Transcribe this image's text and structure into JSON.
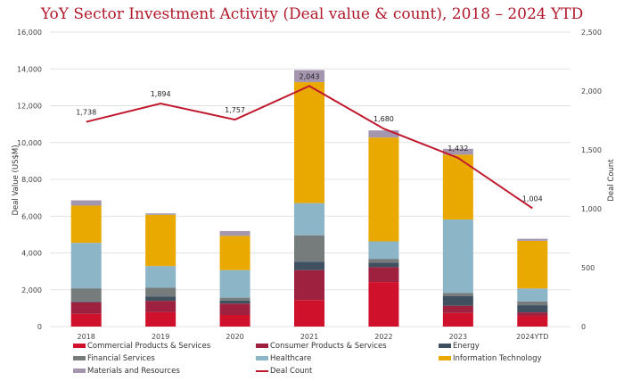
{
  "chart_data": {
    "type": "bar",
    "subtype": "stacked-bar-with-line",
    "title": "YoY Sector Investment Activity (Deal value & count), 2018 – 2024 YTD",
    "xlabel": "",
    "ylabel": "Deal Value (US$M)",
    "y2label": "Deal Count",
    "ylim": [
      0,
      16000
    ],
    "y2lim": [
      0,
      2500
    ],
    "yticks": [
      "0",
      "2,000",
      "4,000",
      "6,000",
      "8,000",
      "10,000",
      "12,000",
      "14,000",
      "16,000"
    ],
    "ytick_values": [
      0,
      2000,
      4000,
      6000,
      8000,
      10000,
      12000,
      14000,
      16000
    ],
    "y2ticks": [
      "0",
      "500",
      "1,000",
      "1,500",
      "2,000",
      "2,500"
    ],
    "y2tick_values": [
      0,
      500,
      1000,
      1500,
      2000,
      2500
    ],
    "grid": true,
    "legend_position": "bottom",
    "categories": [
      "2018",
      "2019",
      "2020",
      "2021",
      "2022",
      "2023",
      "2024YTD"
    ],
    "series": [
      {
        "name": "Commercial Products & Services",
        "color": "#d0112b",
        "values": [
          690,
          780,
          630,
          1440,
          2420,
          740,
          580
        ]
      },
      {
        "name": "Consumer Products & Services",
        "color": "#9e2140",
        "values": [
          630,
          620,
          620,
          1630,
          810,
          390,
          190
        ]
      },
      {
        "name": "Energy",
        "color": "#3f5060",
        "values": [
          50,
          240,
          160,
          450,
          240,
          520,
          390
        ]
      },
      {
        "name": "Financial Services",
        "color": "#767b7c",
        "values": [
          710,
          470,
          160,
          1440,
          210,
          180,
          210
        ]
      },
      {
        "name": "Healthcare",
        "color": "#8db5c8",
        "values": [
          2470,
          1180,
          1500,
          1750,
          950,
          3990,
          700
        ]
      },
      {
        "name": "Information Technology",
        "color": "#eaa900",
        "values": [
          2020,
          2780,
          1860,
          6570,
          5640,
          3520,
          2590
        ]
      },
      {
        "name": "Materials and Resources",
        "color": "#a596b0",
        "values": [
          290,
          80,
          260,
          660,
          390,
          320,
          110
        ]
      }
    ],
    "line_series": {
      "name": "Deal Count",
      "color": "#c0192e",
      "axis": "right",
      "values": [
        1738,
        1894,
        1757,
        2043,
        1680,
        1432,
        1004
      ],
      "labels": [
        "1,738",
        "1,894",
        "1,757",
        "2,043",
        "1,680",
        "1,432",
        "1,004"
      ]
    }
  }
}
